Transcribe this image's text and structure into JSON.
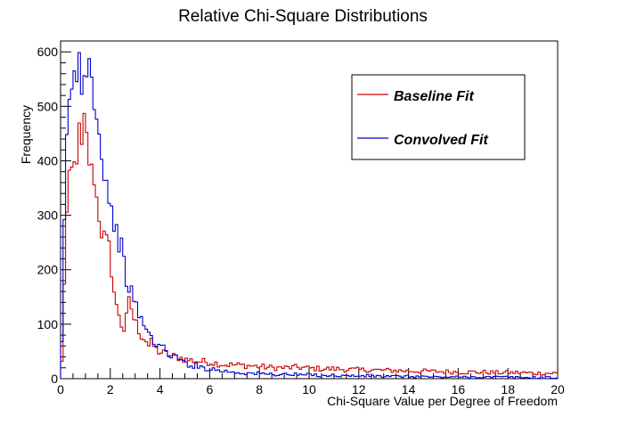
{
  "chart_data": {
    "type": "histogram",
    "title": "Relative Chi-Square Distributions",
    "xlabel": "Chi-Square Value per Degree of Freedom",
    "ylabel": "Frequency",
    "xlim": [
      0,
      20
    ],
    "ylim": [
      0,
      620
    ],
    "x_ticks": [
      0,
      2,
      4,
      6,
      8,
      10,
      12,
      14,
      16,
      18,
      20
    ],
    "x_tick_labels": [
      "0",
      "2",
      "4",
      "6",
      "8",
      "10",
      "12",
      "14",
      "16",
      "18",
      "20"
    ],
    "y_ticks": [
      0,
      100,
      200,
      300,
      400,
      500,
      600
    ],
    "y_tick_labels": [
      "0",
      "100",
      "200",
      "300",
      "400",
      "500",
      "600"
    ],
    "grid": false,
    "legend_position": "top-right",
    "bin_width": 0.1,
    "series": [
      {
        "name": "Baseline Fit",
        "color": "#cc0000",
        "x": [
          0.0,
          0.1,
          0.2,
          0.3,
          0.4,
          0.5,
          0.6,
          0.7,
          0.8,
          0.9,
          1.0,
          1.1,
          1.2,
          1.3,
          1.4,
          1.5,
          1.6,
          1.7,
          1.8,
          1.9,
          2.0,
          2.1,
          2.2,
          2.3,
          2.4,
          2.5,
          2.6,
          2.7,
          2.8,
          2.9,
          3.0,
          3.1,
          3.2,
          3.3,
          3.4,
          3.5,
          3.6,
          3.7,
          3.8,
          3.9,
          4.0,
          4.2,
          4.4,
          4.6,
          4.8,
          5.0,
          5.5,
          6.0,
          6.5,
          7.0,
          7.5,
          8.0,
          8.5,
          9.0,
          9.5,
          10.0,
          10.5,
          11.0,
          11.5,
          12.0,
          12.5,
          13.0,
          13.5,
          14.0,
          14.5,
          15.0,
          15.5,
          16.0,
          16.5,
          17.0,
          17.5,
          18.0,
          18.5,
          19.0,
          19.5
        ],
        "values": [
          30,
          180,
          300,
          360,
          380,
          390,
          410,
          450,
          420,
          470,
          440,
          400,
          380,
          370,
          330,
          300,
          270,
          260,
          250,
          240,
          200,
          160,
          130,
          120,
          100,
          90,
          110,
          140,
          130,
          110,
          100,
          90,
          80,
          75,
          70,
          60,
          65,
          60,
          55,
          50,
          48,
          45,
          42,
          40,
          38,
          35,
          32,
          30,
          26,
          25,
          24,
          22,
          20,
          20,
          21,
          19,
          18,
          18,
          17,
          16,
          16,
          15,
          15,
          14,
          14,
          13,
          13,
          12,
          12,
          12,
          11,
          11,
          11,
          10,
          10
        ]
      },
      {
        "name": "Convolved Fit",
        "color": "#0000cc",
        "x": [
          0.0,
          0.1,
          0.2,
          0.3,
          0.4,
          0.5,
          0.6,
          0.7,
          0.8,
          0.9,
          1.0,
          1.1,
          1.2,
          1.3,
          1.4,
          1.5,
          1.6,
          1.7,
          1.8,
          1.9,
          2.0,
          2.1,
          2.2,
          2.3,
          2.4,
          2.5,
          2.6,
          2.7,
          2.8,
          2.9,
          3.0,
          3.1,
          3.2,
          3.3,
          3.4,
          3.5,
          3.6,
          3.7,
          3.8,
          3.9,
          4.0,
          4.2,
          4.4,
          4.6,
          4.8,
          5.0,
          5.5,
          6.0,
          6.5,
          7.0,
          7.5,
          8.0,
          8.5,
          9.0,
          9.5,
          10.0,
          10.5,
          11.0,
          11.5,
          12.0,
          12.5,
          13.0,
          13.5,
          14.0,
          14.5,
          15.0,
          15.5,
          16.0,
          16.5,
          17.0,
          17.5,
          18.0,
          18.5,
          19.0,
          19.5
        ],
        "values": [
          60,
          280,
          440,
          500,
          540,
          560,
          545,
          585,
          540,
          560,
          580,
          580,
          560,
          520,
          490,
          440,
          420,
          380,
          360,
          330,
          300,
          290,
          270,
          250,
          240,
          210,
          180,
          170,
          160,
          140,
          130,
          120,
          110,
          100,
          90,
          80,
          75,
          70,
          66,
          62,
          58,
          50,
          44,
          38,
          33,
          28,
          22,
          18,
          14,
          12,
          10,
          9,
          8,
          8,
          7,
          7,
          6,
          6,
          5,
          5,
          5,
          4,
          4,
          4,
          4,
          3,
          3,
          3,
          3,
          3,
          3,
          3,
          2,
          2,
          2
        ]
      }
    ]
  }
}
